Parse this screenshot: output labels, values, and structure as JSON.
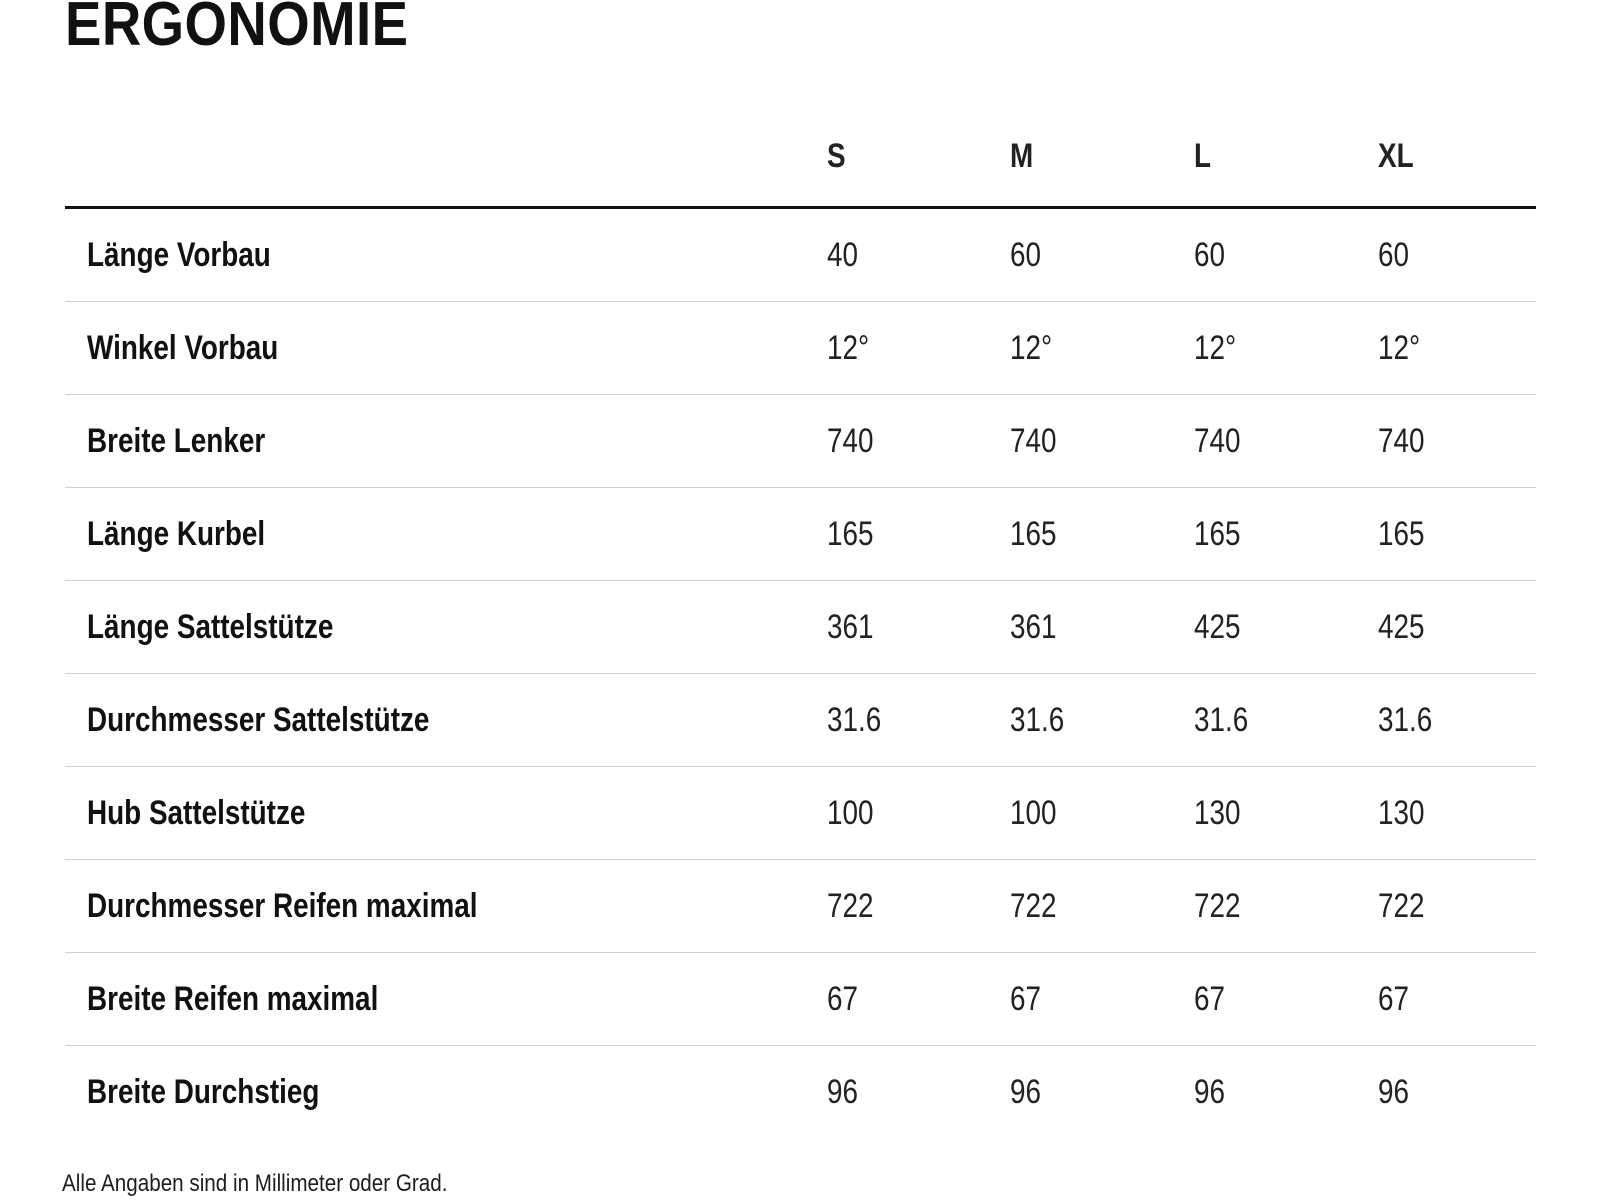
{
  "title": "ERGONOMIE",
  "table": {
    "size_headers": [
      "S",
      "M",
      "L",
      "XL"
    ],
    "rows": [
      {
        "label": "Länge Vorbau",
        "values": [
          "40",
          "60",
          "60",
          "60"
        ]
      },
      {
        "label": "Winkel Vorbau",
        "values": [
          "12°",
          "12°",
          "12°",
          "12°"
        ]
      },
      {
        "label": "Breite Lenker",
        "values": [
          "740",
          "740",
          "740",
          "740"
        ]
      },
      {
        "label": "Länge Kurbel",
        "values": [
          "165",
          "165",
          "165",
          "165"
        ]
      },
      {
        "label": "Länge Sattelstütze",
        "values": [
          "361",
          "361",
          "425",
          "425"
        ]
      },
      {
        "label": "Durchmesser Sattelstütze",
        "values": [
          "31.6",
          "31.6",
          "31.6",
          "31.6"
        ]
      },
      {
        "label": "Hub Sattelstütze",
        "values": [
          "100",
          "100",
          "130",
          "130"
        ]
      },
      {
        "label": "Durchmesser Reifen maximal",
        "values": [
          "722",
          "722",
          "722",
          "722"
        ]
      },
      {
        "label": "Breite Reifen maximal",
        "values": [
          "67",
          "67",
          "67",
          "67"
        ]
      },
      {
        "label": "Breite Durchstieg",
        "values": [
          "96",
          "96",
          "96",
          "96"
        ]
      }
    ],
    "footnote": "Alle Angaben sind in Millimeter oder Grad."
  },
  "colors": {
    "ink": "#111111",
    "value-ink": "#222222",
    "divider": "#cdd1d3",
    "rule": "#111111",
    "bg": "#ffffff"
  }
}
